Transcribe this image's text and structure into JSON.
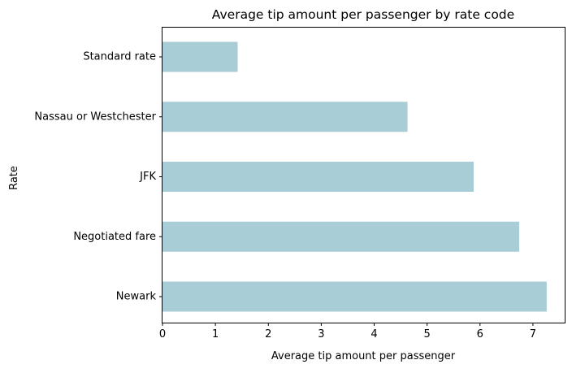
{
  "chart_data": {
    "type": "bar",
    "orientation": "horizontal",
    "title": "Average tip amount per passenger by rate code",
    "xlabel": "Average tip amount per passenger",
    "ylabel": "Rate",
    "categories": [
      "Standard rate",
      "Nassau or Westchester",
      "JFK",
      "Negotiated fare",
      "Newark"
    ],
    "values": [
      1.42,
      4.63,
      5.88,
      6.74,
      7.26
    ],
    "xlim": [
      0,
      7.6
    ],
    "xticks": [
      "0",
      "1",
      "2",
      "3",
      "4",
      "5",
      "6",
      "7"
    ],
    "bar_color": "#a8cdd6",
    "grid": false,
    "legend": "none"
  }
}
